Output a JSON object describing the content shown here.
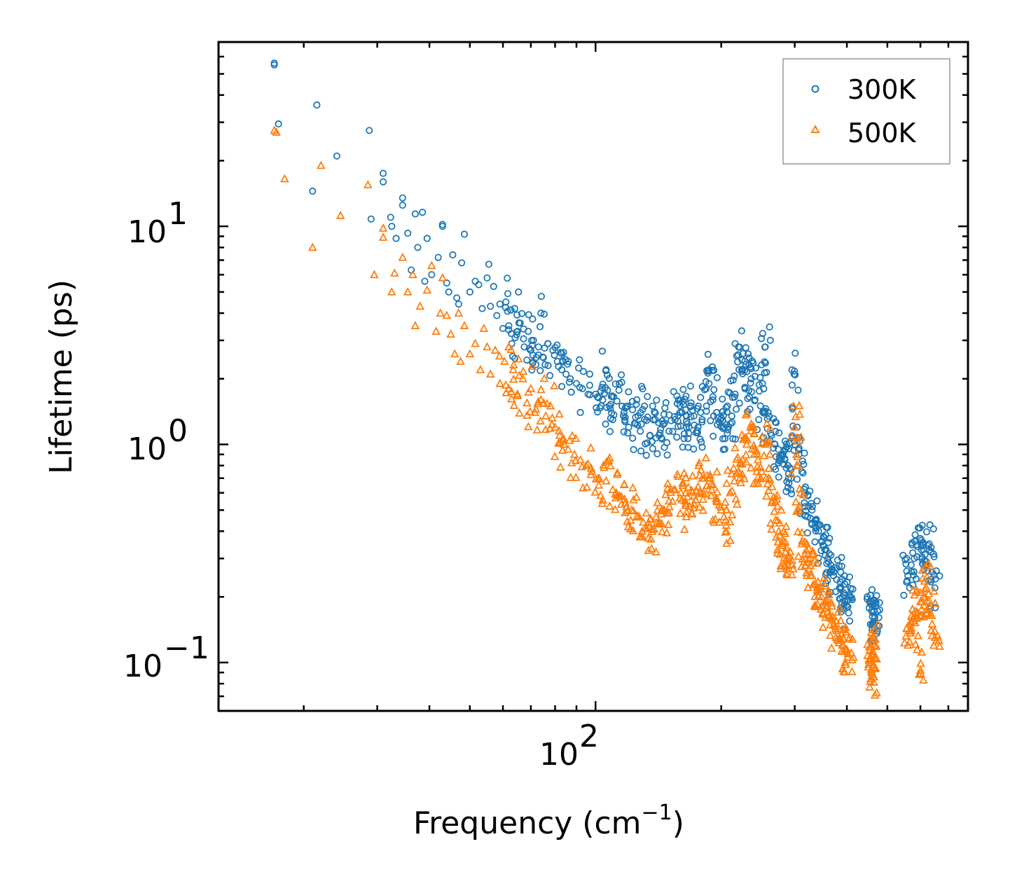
{
  "chart_data": {
    "type": "scatter",
    "x_scale": "log",
    "y_scale": "log",
    "xlim": [
      12.5,
      780
    ],
    "ylim": [
      0.06,
      70
    ],
    "xlabel": {
      "base": "Frequency (cm",
      "sup": "−1",
      "tail": ")"
    },
    "ylabel": "Lifetime (ps)",
    "x_ticks": [
      {
        "value": 100,
        "base": "10",
        "exp": "2"
      }
    ],
    "y_ticks": [
      {
        "value": 0.1,
        "base": "10",
        "exp": "−1"
      },
      {
        "value": 1,
        "base": "10",
        "exp": "0"
      },
      {
        "value": 10,
        "base": "10",
        "exp": "1"
      }
    ],
    "legend_position": "top-right",
    "series": [
      {
        "name": "300K",
        "marker": "circle",
        "color": "#1f77b4",
        "points": [
          [
            17,
            56
          ],
          [
            17,
            55
          ],
          [
            17.4,
            29.5
          ],
          [
            21.5,
            36
          ],
          [
            21,
            14.5
          ],
          [
            24,
            21
          ],
          [
            28.7,
            27.5
          ],
          [
            29,
            10.8
          ],
          [
            31,
            17.5
          ],
          [
            31,
            16
          ],
          [
            32.3,
            11
          ],
          [
            32.5,
            10
          ],
          [
            33.3,
            8.8
          ],
          [
            34.5,
            13.5
          ],
          [
            34.5,
            12.5
          ],
          [
            35.5,
            9.3
          ],
          [
            36.2,
            6.3
          ],
          [
            37,
            11.4
          ],
          [
            37.5,
            8
          ],
          [
            38.5,
            11.6
          ],
          [
            39,
            5.6
          ],
          [
            39.5,
            8.8
          ],
          [
            40.5,
            6
          ],
          [
            42,
            7.2
          ],
          [
            43,
            10.2
          ],
          [
            43,
            10
          ],
          [
            44,
            5.5
          ],
          [
            44.5,
            5
          ],
          [
            45.5,
            7.4
          ],
          [
            46.5,
            4.7
          ],
          [
            47,
            4.4
          ],
          [
            47.8,
            6.8
          ],
          [
            48.5,
            9.2
          ],
          [
            50,
            5
          ],
          [
            51.5,
            5.6
          ],
          [
            52.5,
            5.4
          ],
          [
            53.5,
            4.2
          ],
          [
            55,
            5.8
          ],
          [
            55.5,
            6.7
          ],
          [
            56,
            4.3
          ],
          [
            57,
            5.3
          ],
          [
            58,
            3.9
          ],
          [
            59,
            4.4
          ],
          [
            60,
            3.4
          ],
          [
            61,
            4.5
          ],
          [
            62,
            3.5
          ],
          [
            63,
            2.9
          ],
          [
            64,
            4.2
          ],
          [
            65,
            3.3
          ],
          [
            66,
            3.6
          ],
          [
            67.5,
            2.8
          ],
          [
            69,
            3.3
          ],
          [
            70,
            2.7
          ],
          [
            71,
            3
          ],
          [
            73,
            2.8
          ],
          [
            74,
            4
          ],
          [
            75,
            2.5
          ],
          [
            77,
            2.3
          ],
          [
            79,
            2.7
          ],
          [
            81,
            2.4
          ],
          [
            83,
            2.2
          ],
          [
            85,
            2.1
          ],
          [
            87,
            2
          ],
          [
            90,
            1.9
          ],
          [
            93,
            1.8
          ],
          [
            96,
            1.7
          ],
          [
            100,
            1.7
          ],
          [
            104,
            1.6
          ],
          [
            106,
            2.2
          ],
          [
            108,
            1.5
          ],
          [
            110,
            1.3
          ],
          [
            114,
            1.9
          ],
          [
            117,
            1.4
          ],
          [
            120,
            1.2
          ],
          [
            124,
            1.25
          ],
          [
            128,
            1.15
          ],
          [
            131,
            1.5
          ],
          [
            135,
            1.1
          ],
          [
            139,
            1.3
          ],
          [
            142,
            1.1
          ],
          [
            146,
            1.25
          ],
          [
            150,
            1.15
          ],
          [
            155,
            1.3
          ],
          [
            158,
            1.6
          ],
          [
            161,
            1.4
          ],
          [
            165,
            1.2
          ],
          [
            169,
            1.5
          ],
          [
            172,
            1.35
          ],
          [
            176,
            1.2
          ],
          [
            180,
            1.3
          ],
          [
            184,
            1.8
          ],
          [
            187,
            2.2
          ],
          [
            191,
            1.6
          ],
          [
            195,
            1.4
          ],
          [
            199,
            1.3
          ],
          [
            203,
            1.2
          ],
          [
            207,
            1.5
          ],
          [
            212,
            1.35
          ],
          [
            216,
            1.7
          ],
          [
            220,
            2.8
          ],
          [
            224,
            2.2
          ],
          [
            228,
            1.8
          ],
          [
            232,
            2.6
          ],
          [
            236,
            2.0
          ],
          [
            241,
            1.6
          ],
          [
            246,
            1.3
          ],
          [
            251,
            1.9
          ],
          [
            255,
            2.8
          ],
          [
            259,
            1.4
          ],
          [
            264,
            1.1
          ],
          [
            269,
            1.0
          ],
          [
            274,
            0.95
          ],
          [
            279,
            0.9
          ],
          [
            284,
            0.85
          ],
          [
            289,
            0.8
          ],
          [
            294,
            0.7
          ],
          [
            299,
            2.1
          ],
          [
            304,
            1.2
          ],
          [
            307,
            0.9
          ],
          [
            312,
            0.75
          ],
          [
            318,
            0.6
          ],
          [
            324,
            0.52
          ],
          [
            330,
            0.5
          ],
          [
            336,
            0.45
          ],
          [
            342,
            0.4
          ],
          [
            348,
            0.36
          ],
          [
            354,
            0.33
          ],
          [
            360,
            0.3
          ],
          [
            366,
            0.28
          ],
          [
            372,
            0.26
          ],
          [
            378,
            0.24
          ],
          [
            384,
            0.22
          ],
          [
            390,
            0.2
          ],
          [
            396,
            0.19
          ],
          [
            402,
            0.18
          ],
          [
            408,
            0.2
          ],
          [
            460,
            0.19
          ],
          [
            460,
            0.17
          ],
          [
            462,
            0.15
          ],
          [
            464,
            0.14
          ],
          [
            466,
            0.16
          ],
          [
            468,
            0.18
          ],
          [
            560,
            0.25
          ],
          [
            570,
            0.28
          ],
          [
            580,
            0.3
          ],
          [
            590,
            0.34
          ],
          [
            600,
            0.37
          ],
          [
            610,
            0.33
          ],
          [
            620,
            0.29
          ],
          [
            630,
            0.35
          ],
          [
            640,
            0.26
          ],
          [
            650,
            0.22
          ]
        ]
      },
      {
        "name": "500K",
        "marker": "triangle",
        "color": "#ff7f0e",
        "points": [
          [
            17,
            27.5
          ],
          [
            17.2,
            27
          ],
          [
            18,
            16.5
          ],
          [
            21,
            8
          ],
          [
            22,
            19
          ],
          [
            24.5,
            11.2
          ],
          [
            28.5,
            15.5
          ],
          [
            29.5,
            6
          ],
          [
            31,
            9.8
          ],
          [
            31,
            8.9
          ],
          [
            32.5,
            5
          ],
          [
            33,
            6.1
          ],
          [
            34.5,
            7.2
          ],
          [
            35.5,
            5
          ],
          [
            36.5,
            6
          ],
          [
            37,
            3.5
          ],
          [
            38,
            4.3
          ],
          [
            39.5,
            5.1
          ],
          [
            40.5,
            6.6
          ],
          [
            41.5,
            3.3
          ],
          [
            42.5,
            4
          ],
          [
            43,
            5.8
          ],
          [
            44,
            3.9
          ],
          [
            45,
            3.2
          ],
          [
            46,
            2.6
          ],
          [
            47,
            4
          ],
          [
            47.5,
            2.4
          ],
          [
            48.5,
            3.5
          ],
          [
            50,
            2.6
          ],
          [
            51.5,
            2.9
          ],
          [
            53,
            2.2
          ],
          [
            54,
            3.4
          ],
          [
            55,
            2.8
          ],
          [
            56,
            2.1
          ],
          [
            57.5,
            2.7
          ],
          [
            59,
            1.9
          ],
          [
            60.5,
            2.4
          ],
          [
            62,
            1.8
          ],
          [
            63.5,
            2.2
          ],
          [
            65,
            1.7
          ],
          [
            67,
            2.0
          ],
          [
            68.5,
            1.55
          ],
          [
            70,
            1.8
          ],
          [
            72,
            1.45
          ],
          [
            74,
            1.6
          ],
          [
            76,
            1.35
          ],
          [
            78,
            1.5
          ],
          [
            80,
            1.2
          ],
          [
            82,
            1.1
          ],
          [
            84,
            1.0
          ],
          [
            86,
            0.95
          ],
          [
            89,
            0.9
          ],
          [
            92,
            0.85
          ],
          [
            95,
            0.8
          ],
          [
            98,
            0.75
          ],
          [
            102,
            0.7
          ],
          [
            106,
            0.68
          ],
          [
            110,
            0.62
          ],
          [
            114,
            0.58
          ],
          [
            118,
            0.54
          ],
          [
            122,
            0.5
          ],
          [
            126,
            0.47
          ],
          [
            130,
            0.44
          ],
          [
            134,
            0.42
          ],
          [
            138,
            0.41
          ],
          [
            142,
            0.44
          ],
          [
            146,
            0.5
          ],
          [
            150,
            0.55
          ],
          [
            155,
            0.62
          ],
          [
            160,
            0.6
          ],
          [
            164,
            0.55
          ],
          [
            168,
            0.52
          ],
          [
            172,
            0.58
          ],
          [
            176,
            0.64
          ],
          [
            180,
            0.7
          ],
          [
            185,
            0.72
          ],
          [
            190,
            0.62
          ],
          [
            195,
            0.55
          ],
          [
            200,
            0.5
          ],
          [
            205,
            0.45
          ],
          [
            210,
            0.6
          ],
          [
            215,
            0.68
          ],
          [
            220,
            0.75
          ],
          [
            225,
            0.85
          ],
          [
            230,
            1.0
          ],
          [
            235,
            1.2
          ],
          [
            240,
            0.95
          ],
          [
            245,
            0.85
          ],
          [
            250,
            0.75
          ],
          [
            255,
            1.0
          ],
          [
            260,
            0.7
          ],
          [
            265,
            0.55
          ],
          [
            270,
            0.45
          ],
          [
            275,
            0.4
          ],
          [
            280,
            0.35
          ],
          [
            285,
            0.32
          ],
          [
            290,
            0.3
          ],
          [
            296,
            0.28
          ],
          [
            300,
            1.2
          ],
          [
            303,
            0.9
          ],
          [
            307,
            0.5
          ],
          [
            312,
            0.35
          ],
          [
            318,
            0.3
          ],
          [
            324,
            0.27
          ],
          [
            330,
            0.25
          ],
          [
            336,
            0.23
          ],
          [
            342,
            0.22
          ],
          [
            348,
            0.2
          ],
          [
            354,
            0.19
          ],
          [
            360,
            0.17
          ],
          [
            366,
            0.16
          ],
          [
            372,
            0.15
          ],
          [
            378,
            0.14
          ],
          [
            384,
            0.13
          ],
          [
            390,
            0.12
          ],
          [
            396,
            0.115
          ],
          [
            402,
            0.11
          ],
          [
            406,
            0.13
          ],
          [
            458,
            0.1
          ],
          [
            459,
            0.09
          ],
          [
            460,
            0.088
          ],
          [
            462,
            0.095
          ],
          [
            464,
            0.11
          ],
          [
            466,
            0.12
          ],
          [
            560,
            0.12
          ],
          [
            570,
            0.14
          ],
          [
            580,
            0.16
          ],
          [
            590,
            0.17
          ],
          [
            600,
            0.19
          ],
          [
            610,
            0.2
          ],
          [
            620,
            0.22
          ],
          [
            630,
            0.18
          ],
          [
            640,
            0.15
          ],
          [
            650,
            0.13
          ],
          [
            600,
            0.092
          ]
        ]
      }
    ]
  }
}
